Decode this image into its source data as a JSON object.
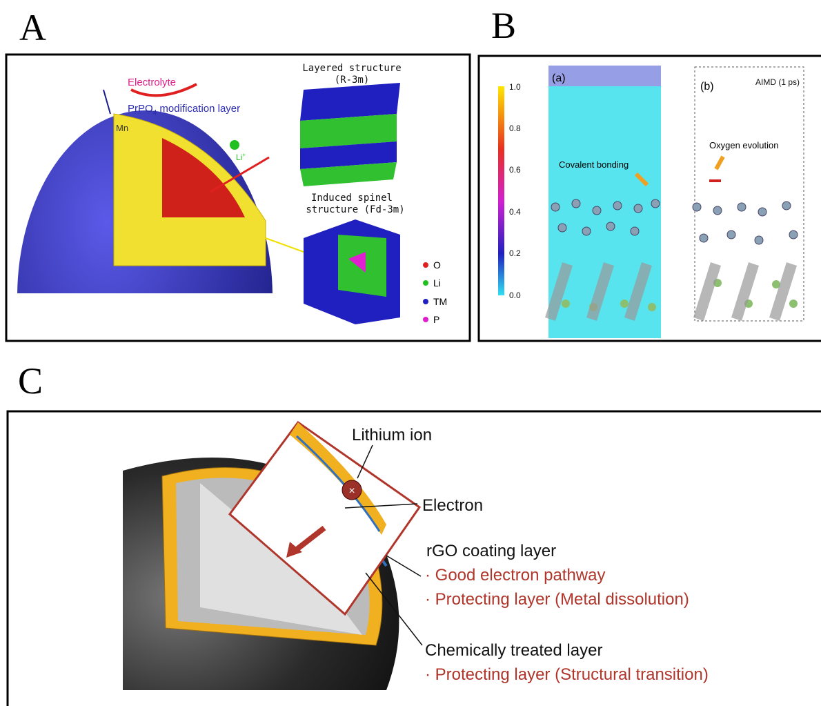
{
  "panel_a": {
    "label": "A",
    "electrolyte": "Electrolyte",
    "layer_text": "PrPO",
    "layer_sub": "4",
    "layer_rest": " modification layer",
    "mn": "Mn",
    "li": "Li",
    "li_sup": "+",
    "layered_title": "Layered structure",
    "layered_group": "(R-3m)",
    "spinel_title": "Induced spinel",
    "spinel_group": "structure (Fd-3m)",
    "legend": [
      "O",
      "Li",
      "TM",
      "P"
    ]
  },
  "panel_b": {
    "label": "B",
    "sub_a": "(a)",
    "sub_b": "(b)",
    "aimd": "AIMD (1 ps)",
    "colorbar": [
      "1.0",
      "0.8",
      "0.6",
      "0.4",
      "0.2",
      "0.0"
    ],
    "covalent": "Covalent bonding",
    "oxygen": "Oxygen evolution"
  },
  "panel_c": {
    "label": "C",
    "lithium": "Lithium ion",
    "electron": "Electron",
    "rgo": "rGO coating layer",
    "rgo_points": [
      "· Good electron pathway",
      "· Protecting layer (Metal dissolution)"
    ],
    "chem": "Chemically treated layer",
    "chem_points": [
      "· Protecting layer (Structural transition)"
    ]
  }
}
